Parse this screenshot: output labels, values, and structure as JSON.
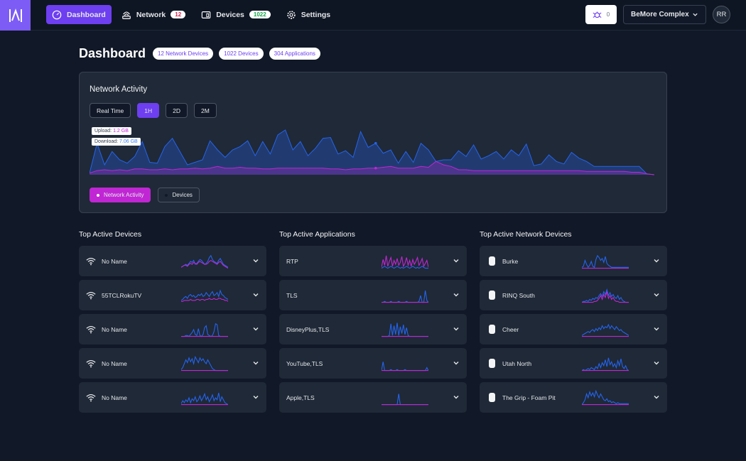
{
  "nav": {
    "items": [
      {
        "label": "Dashboard",
        "icon": "dashboard-icon",
        "active": true
      },
      {
        "label": "Network",
        "icon": "network-icon",
        "count": "12"
      },
      {
        "label": "Devices",
        "icon": "devices-icon",
        "count": "1022"
      },
      {
        "label": "Settings",
        "icon": "gear-icon"
      }
    ],
    "notifications": "0",
    "site": "BeMore Complex",
    "avatar": "RR"
  },
  "page": {
    "title": "Dashboard",
    "badges": [
      "12 Network Devices",
      "1022 Devices",
      "304 Applications"
    ]
  },
  "activity": {
    "title": "Network Activity",
    "ranges": [
      "Real Time",
      "1H",
      "2D",
      "2M"
    ],
    "active_range": "1H",
    "tooltip": {
      "upload_label": "Upload:",
      "upload_value": "1.2 GB",
      "download_label": "Download:",
      "download_value": "7.06 GB"
    },
    "legend": [
      "Network Activity",
      "Devices"
    ],
    "colors": {
      "download": "#2563eb",
      "upload": "#c026d3"
    }
  },
  "chart_data": {
    "type": "area",
    "series": [
      {
        "name": "Download",
        "values": [
          2,
          38,
          12,
          28,
          18,
          14,
          22,
          40,
          15,
          14,
          34,
          44,
          28,
          12,
          15,
          18,
          41,
          30,
          21,
          30,
          34,
          41,
          23,
          40,
          25,
          48,
          54,
          30,
          40,
          23,
          32,
          44,
          45,
          25,
          29,
          21,
          52,
          33,
          38,
          26,
          30,
          14,
          28,
          15,
          38,
          30,
          16,
          18,
          18,
          29,
          22,
          36,
          19,
          23,
          28,
          19,
          30,
          23,
          37,
          11,
          13,
          24,
          16,
          13,
          27,
          20,
          16,
          10,
          10,
          10,
          10,
          10,
          10,
          10,
          1,
          0
        ]
      },
      {
        "name": "Upload",
        "values": [
          2,
          5,
          6,
          5,
          6,
          5,
          7,
          7,
          6,
          6,
          7,
          6,
          7,
          7,
          8,
          7,
          8,
          10,
          8,
          8,
          9,
          8,
          8,
          7,
          7,
          8,
          8,
          8,
          8,
          8,
          8,
          8,
          7,
          7,
          6,
          7,
          7,
          8,
          8,
          9,
          10,
          8,
          8,
          8,
          10,
          9,
          16,
          12,
          10,
          6,
          6,
          5,
          5,
          5,
          5,
          5,
          5,
          5,
          5,
          5,
          5,
          5,
          5,
          5,
          5,
          5,
          4,
          4,
          4,
          4,
          4,
          4,
          3,
          3,
          1,
          0
        ]
      }
    ]
  },
  "columns": [
    {
      "title": "Top Active Devices",
      "icon": "wifi-icon",
      "rows": [
        {
          "label": "No Name",
          "blue": [
            2,
            3,
            4,
            5,
            4,
            6,
            8,
            7,
            9,
            5,
            6,
            8,
            10,
            9,
            7,
            5,
            6,
            8,
            12,
            14,
            10,
            8,
            7,
            6,
            9,
            11,
            8,
            5,
            4,
            3,
            2
          ],
          "pink": [
            2,
            3,
            4,
            4,
            3,
            5,
            6,
            5,
            7,
            6,
            5,
            7,
            8,
            7,
            6,
            5,
            5,
            6,
            8,
            9,
            8,
            7,
            6,
            5,
            7,
            8,
            6,
            4,
            3,
            2,
            1
          ]
        },
        {
          "label": "55TCLRokuTV",
          "blue": [
            3,
            4,
            6,
            7,
            5,
            8,
            9,
            7,
            8,
            6,
            7,
            9,
            8,
            10,
            7,
            8,
            11,
            9,
            7,
            10,
            12,
            8,
            9,
            11,
            7,
            13,
            9,
            8,
            6,
            5,
            4
          ],
          "pink": [
            2,
            2,
            3,
            3,
            3,
            3,
            4,
            3,
            3,
            3,
            4,
            4,
            3,
            4,
            4,
            3,
            4,
            4,
            5,
            4,
            4,
            5,
            4,
            4,
            5,
            5,
            4,
            4,
            3,
            3,
            2
          ]
        },
        {
          "label": "No Name",
          "blue": [
            1,
            1,
            1,
            2,
            2,
            1,
            3,
            5,
            8,
            3,
            2,
            9,
            2,
            1,
            3,
            10,
            12,
            3,
            2,
            1,
            2,
            6,
            14,
            13,
            2,
            1,
            1,
            1,
            1,
            1,
            1
          ],
          "pink": [
            1,
            1,
            1,
            1,
            1,
            1,
            1,
            1,
            1,
            1,
            1,
            1,
            1,
            1,
            1,
            1,
            1,
            1,
            1,
            1,
            1,
            1,
            1,
            1,
            1,
            1,
            1,
            1,
            1,
            1,
            1
          ]
        },
        {
          "label": "No Name",
          "blue": [
            2,
            4,
            8,
            12,
            9,
            14,
            10,
            13,
            8,
            15,
            12,
            9,
            14,
            11,
            13,
            10,
            8,
            12,
            9,
            6,
            3,
            2,
            1,
            1,
            1,
            1,
            1,
            1,
            1,
            1,
            1
          ],
          "pink": [
            1,
            1,
            1,
            1,
            1,
            1,
            1,
            1,
            1,
            1,
            1,
            1,
            1,
            1,
            1,
            1,
            1,
            1,
            1,
            1,
            1,
            1,
            1,
            1,
            1,
            1,
            1,
            1,
            1,
            1,
            1
          ]
        },
        {
          "label": "No Name",
          "blue": [
            2,
            5,
            3,
            6,
            4,
            8,
            3,
            7,
            5,
            9,
            4,
            6,
            10,
            5,
            8,
            12,
            6,
            9,
            4,
            7,
            11,
            5,
            8,
            6,
            13,
            4,
            9,
            6,
            3,
            2,
            1
          ],
          "pink": [
            1,
            1,
            1,
            1,
            1,
            1,
            1,
            1,
            1,
            1,
            1,
            1,
            1,
            1,
            1,
            1,
            1,
            1,
            1,
            1,
            1,
            1,
            1,
            1,
            1,
            1,
            1,
            1,
            1,
            1,
            1
          ]
        }
      ]
    },
    {
      "title": "Top Active Applications",
      "icon": "",
      "rows": [
        {
          "label": "RTP",
          "blue": [
            1,
            2,
            3,
            2,
            1,
            2,
            3,
            2,
            1,
            2,
            3,
            2,
            1,
            2,
            1,
            2,
            3,
            2,
            1,
            2,
            3,
            2,
            1,
            2,
            1,
            2,
            3,
            2,
            1,
            1,
            1
          ],
          "pink": [
            2,
            10,
            4,
            14,
            3,
            8,
            12,
            3,
            9,
            5,
            11,
            4,
            7,
            13,
            3,
            6,
            12,
            4,
            9,
            3,
            10,
            5,
            8,
            12,
            4,
            7,
            11,
            3,
            6,
            9,
            2
          ]
        },
        {
          "label": "TLS",
          "blue": [
            1,
            1,
            2,
            1,
            1,
            1,
            2,
            1,
            1,
            1,
            1,
            2,
            1,
            1,
            1,
            1,
            2,
            1,
            1,
            1,
            1,
            1,
            1,
            1,
            2,
            8,
            1,
            1,
            13,
            3,
            1
          ],
          "pink": [
            1,
            1,
            1,
            1,
            1,
            1,
            1,
            1,
            1,
            1,
            1,
            1,
            1,
            1,
            1,
            1,
            1,
            1,
            1,
            1,
            1,
            1,
            1,
            1,
            1,
            1,
            1,
            1,
            1,
            1,
            1
          ]
        },
        {
          "label": "DisneyPlus,TLS",
          "blue": [
            1,
            1,
            1,
            1,
            1,
            2,
            14,
            2,
            12,
            3,
            15,
            2,
            11,
            4,
            13,
            3,
            10,
            2,
            1,
            1,
            1,
            1,
            1,
            1,
            1,
            1,
            1,
            1,
            1,
            1,
            1
          ],
          "pink": [
            1,
            1,
            1,
            1,
            1,
            1,
            1,
            1,
            1,
            1,
            1,
            1,
            1,
            1,
            1,
            1,
            1,
            1,
            1,
            1,
            1,
            1,
            1,
            1,
            1,
            1,
            1,
            1,
            1,
            1,
            1
          ]
        },
        {
          "label": "YouTube,TLS",
          "blue": [
            1,
            10,
            1,
            1,
            1,
            1,
            2,
            1,
            1,
            1,
            2,
            1,
            1,
            1,
            1,
            2,
            1,
            1,
            1,
            1,
            1,
            1,
            1,
            1,
            1,
            1,
            1,
            1,
            1,
            4,
            1
          ],
          "pink": [
            1,
            1,
            1,
            1,
            1,
            1,
            1,
            1,
            1,
            1,
            1,
            1,
            1,
            1,
            1,
            1,
            1,
            1,
            1,
            1,
            1,
            1,
            1,
            1,
            1,
            1,
            1,
            1,
            1,
            1,
            1
          ]
        },
        {
          "label": "Apple,TLS",
          "blue": [
            1,
            1,
            1,
            1,
            1,
            1,
            1,
            1,
            1,
            1,
            1,
            12,
            1,
            1,
            1,
            1,
            1,
            1,
            1,
            1,
            1,
            1,
            1,
            1,
            1,
            1,
            1,
            1,
            1,
            1,
            1
          ],
          "pink": [
            1,
            1,
            1,
            1,
            1,
            1,
            1,
            1,
            1,
            1,
            1,
            1,
            1,
            1,
            1,
            1,
            1,
            1,
            1,
            1,
            1,
            1,
            1,
            1,
            1,
            1,
            1,
            1,
            1,
            1,
            1
          ]
        }
      ]
    },
    {
      "title": "Top Active Network Devices",
      "icon": "access-point-icon",
      "rows": [
        {
          "label": "Burke",
          "blue": [
            2,
            3,
            9,
            5,
            2,
            4,
            8,
            3,
            2,
            10,
            14,
            12,
            9,
            11,
            7,
            13,
            6,
            4,
            3,
            2,
            2,
            2,
            2,
            2,
            2,
            2,
            2,
            2,
            2,
            2,
            2
          ],
          "pink": [
            1,
            1,
            1,
            1,
            1,
            1,
            1,
            1,
            1,
            1,
            1,
            1,
            1,
            1,
            1,
            1,
            1,
            1,
            1,
            1,
            1,
            1,
            1,
            1,
            1,
            1,
            1,
            1,
            1,
            1,
            1
          ]
        },
        {
          "label": "RINQ South",
          "blue": [
            1,
            2,
            2,
            3,
            2,
            4,
            3,
            5,
            4,
            6,
            5,
            8,
            10,
            7,
            12,
            9,
            14,
            8,
            11,
            7,
            9,
            6,
            5,
            8,
            4,
            6,
            3,
            2,
            1,
            1,
            1
          ],
          "pink": [
            1,
            1,
            1,
            1,
            1,
            1,
            1,
            1,
            2,
            2,
            3,
            5,
            8,
            4,
            9,
            6,
            12,
            5,
            8,
            4,
            6,
            3,
            2,
            2,
            1,
            1,
            1,
            1,
            1,
            1,
            1
          ]
        },
        {
          "label": "Cheer",
          "blue": [
            2,
            3,
            4,
            5,
            6,
            5,
            7,
            8,
            6,
            9,
            7,
            10,
            8,
            12,
            9,
            11,
            10,
            13,
            9,
            12,
            10,
            8,
            11,
            9,
            7,
            8,
            6,
            5,
            4,
            3,
            2
          ],
          "pink": [
            1,
            1,
            1,
            1,
            1,
            1,
            1,
            1,
            1,
            1,
            1,
            1,
            1,
            1,
            1,
            1,
            1,
            1,
            1,
            1,
            1,
            1,
            1,
            1,
            1,
            1,
            1,
            1,
            1,
            1,
            1
          ]
        },
        {
          "label": "Utah North",
          "blue": [
            1,
            2,
            1,
            2,
            3,
            2,
            4,
            3,
            2,
            5,
            3,
            8,
            4,
            9,
            6,
            12,
            5,
            14,
            7,
            10,
            5,
            8,
            4,
            11,
            6,
            13,
            5,
            3,
            6,
            2,
            1
          ],
          "pink": [
            1,
            1,
            1,
            1,
            1,
            1,
            1,
            1,
            1,
            1,
            1,
            1,
            1,
            1,
            1,
            1,
            1,
            1,
            1,
            1,
            1,
            1,
            1,
            1,
            1,
            1,
            1,
            1,
            1,
            1,
            1
          ]
        },
        {
          "label": "The Grip - Foam Pit",
          "blue": [
            1,
            3,
            6,
            12,
            8,
            14,
            10,
            13,
            9,
            15,
            11,
            8,
            12,
            9,
            6,
            5,
            7,
            4,
            5,
            3,
            4,
            3,
            2,
            3,
            2,
            2,
            2,
            2,
            2,
            2,
            2
          ],
          "pink": [
            1,
            1,
            1,
            1,
            1,
            1,
            1,
            1,
            1,
            1,
            1,
            1,
            1,
            1,
            1,
            1,
            1,
            1,
            1,
            1,
            1,
            1,
            1,
            1,
            1,
            1,
            1,
            1,
            1,
            1,
            1
          ]
        }
      ]
    }
  ]
}
